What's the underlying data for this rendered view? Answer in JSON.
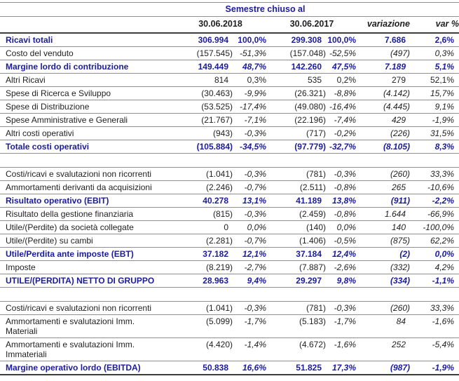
{
  "header": {
    "title": "Semestre chiuso al",
    "col_2018": "30.06.2018",
    "col_2017": "30.06.2017",
    "col_var": "variazione",
    "col_var_pct": "var %"
  },
  "colors": {
    "accent_blue": "#1b1b9e",
    "text": "#1f1f1f",
    "line_thin": "#8f8f8f",
    "line_strong": "#3d3d3d"
  },
  "table": {
    "rows": [
      {
        "label": "Ricavi totali",
        "values": [
          "306.994",
          "100,0%",
          "299.308",
          "100,0%",
          "7.686",
          "2,6%"
        ],
        "emphasis": true,
        "italics": false
      },
      {
        "label": "Costo del venduto",
        "values": [
          "(157.545)",
          "-51,3%",
          "(157.048)",
          "-52,5%",
          "(497)",
          "0,3%"
        ],
        "emphasis": false,
        "italics": true
      },
      {
        "label": "Margine lordo di contribuzione",
        "values": [
          "149.449",
          "48,7%",
          "142.260",
          "47,5%",
          "7.189",
          "5,1%"
        ],
        "emphasis": true,
        "italics": true
      },
      {
        "label": "Altri Ricavi",
        "values": [
          "814",
          "0,3%",
          "535",
          "0,2%",
          "279",
          "52,1%"
        ],
        "emphasis": false,
        "italics": false
      },
      {
        "label": "Spese di Ricerca e Sviluppo",
        "values": [
          "(30.463)",
          "-9,9%",
          "(26.321)",
          "-8,8%",
          "(4.142)",
          "15,7%"
        ],
        "emphasis": false,
        "italics": true
      },
      {
        "label": "Spese di Distribuzione",
        "values": [
          "(53.525)",
          "-17,4%",
          "(49.080)",
          "-16,4%",
          "(4.445)",
          "9,1%"
        ],
        "emphasis": false,
        "italics": true
      },
      {
        "label": "Spese Amministrative e Generali",
        "values": [
          "(21.767)",
          "-7,1%",
          "(22.196)",
          "-7,4%",
          "429",
          "-1,9%"
        ],
        "emphasis": false,
        "italics": true
      },
      {
        "label": "Altri costi operativi",
        "values": [
          "(943)",
          "-0,3%",
          "(717)",
          "-0,2%",
          "(226)",
          "31,5%"
        ],
        "emphasis": false,
        "italics": true
      },
      {
        "label": "Totale costi operativi",
        "values": [
          "(105.884)",
          "-34,5%",
          "(97.779)",
          "-32,7%",
          "(8.105)",
          "8,3%"
        ],
        "emphasis": true,
        "italics": true
      },
      {
        "spacer": true
      },
      {
        "label": "Costi/ricavi e svalutazioni non ricorrenti",
        "values": [
          "(1.041)",
          "-0,3%",
          "(781)",
          "-0,3%",
          "(260)",
          "33,3%"
        ],
        "emphasis": false,
        "italics": true
      },
      {
        "label": "Ammortamenti derivanti da acquisizioni",
        "values": [
          "(2.246)",
          "-0,7%",
          "(2.511)",
          "-0,8%",
          "265",
          "-10,6%"
        ],
        "emphasis": false,
        "italics": true
      },
      {
        "label": "Risultato operativo (EBIT)",
        "values": [
          "40.278",
          "13,1%",
          "41.189",
          "13,8%",
          "(911)",
          "-2,2%"
        ],
        "emphasis": true,
        "italics": true
      },
      {
        "label": "Risultato della gestione finanziaria",
        "values": [
          "(815)",
          "-0,3%",
          "(2.459)",
          "-0,8%",
          "1.644",
          "-66,9%"
        ],
        "emphasis": false,
        "italics": true
      },
      {
        "label": "Utile/(Perdite) da società collegate",
        "values": [
          "0",
          "0,0%",
          "(140)",
          "0,0%",
          "140",
          "-100,0%"
        ],
        "emphasis": false,
        "italics": true
      },
      {
        "label": "Utile/(Perdite) su cambi",
        "values": [
          "(2.281)",
          "-0,7%",
          "(1.406)",
          "-0,5%",
          "(875)",
          "62,2%"
        ],
        "emphasis": false,
        "italics": true
      },
      {
        "label": "Utile/Perdita ante imposte (EBT)",
        "values": [
          "37.182",
          "12,1%",
          "37.184",
          "12,4%",
          "(2)",
          "0,0%"
        ],
        "emphasis": true,
        "italics": true
      },
      {
        "label": "Imposte",
        "values": [
          "(8.219)",
          "-2,7%",
          "(7.887)",
          "-2,6%",
          "(332)",
          "4,2%"
        ],
        "emphasis": false,
        "italics": true
      },
      {
        "label": "UTILE/(PERDITA) NETTO DI GRUPPO",
        "values": [
          "28.963",
          "9,4%",
          "29.297",
          "9,8%",
          "(334)",
          "-1,1%"
        ],
        "emphasis": true,
        "italics": true
      },
      {
        "spacer": true
      },
      {
        "label": "Costi/ricavi e svalutazioni non ricorrenti",
        "values": [
          "(1.041)",
          "-0,3%",
          "(781)",
          "-0,3%",
          "(260)",
          "33,3%"
        ],
        "emphasis": false,
        "italics": true
      },
      {
        "label": "Ammortamenti e svalutazioni Imm.",
        "label2": "Materiali",
        "values": [
          "(5.099)",
          "-1,7%",
          "(5.183)",
          "-1,7%",
          "84",
          "-1,6%"
        ],
        "emphasis": false,
        "italics": true
      },
      {
        "label": "Ammortamenti e svalutazioni Imm.",
        "label2": "Immateriali",
        "values": [
          "(4.420)",
          "-1,4%",
          "(4.672)",
          "-1,6%",
          "252",
          "-5,4%"
        ],
        "emphasis": false,
        "italics": true
      },
      {
        "label": "Margine operativo lordo (EBITDA)",
        "values": [
          "50.838",
          "16,6%",
          "51.825",
          "17,3%",
          "(987)",
          "-1,9%"
        ],
        "emphasis": true,
        "italics": true
      }
    ]
  }
}
